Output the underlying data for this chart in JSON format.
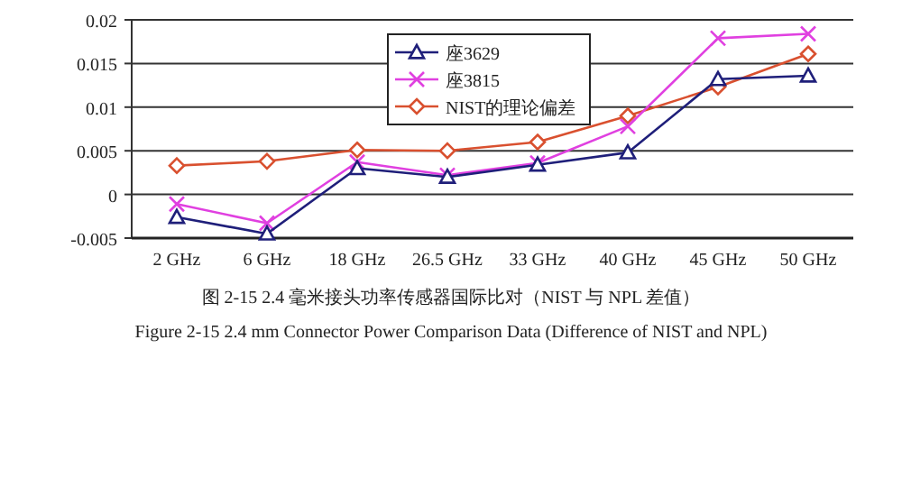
{
  "chart_data": {
    "type": "line",
    "categories": [
      "2 GHz",
      "6 GHz",
      "18 GHz",
      "26.5 GHz",
      "33 GHz",
      "40 GHz",
      "45 GHz",
      "50 GHz"
    ],
    "series": [
      {
        "name": "座3629",
        "color": "#1f1f7a",
        "marker": "triangle",
        "values": [
          -0.0026,
          -0.0045,
          0.003,
          0.002,
          0.0034,
          0.0048,
          0.0132,
          0.0136
        ]
      },
      {
        "name": "座3815",
        "color": "#e040e0",
        "marker": "cross",
        "values": [
          -0.0011,
          -0.0033,
          0.0037,
          0.0022,
          0.0036,
          0.0078,
          0.0179,
          0.0184
        ]
      },
      {
        "name": "NIST的理论偏差",
        "color": "#d9502f",
        "marker": "diamond",
        "values": [
          0.0033,
          0.0038,
          0.0051,
          0.005,
          0.006,
          0.009,
          0.0123,
          0.0161
        ]
      }
    ],
    "ylim": [
      -0.005,
      0.02
    ],
    "yticks": [
      -0.005,
      0,
      0.005,
      0.01,
      0.015,
      0.02
    ],
    "grid": "y",
    "legend": "top",
    "annotations": [
      "图  2-15 2.4 毫米接头功率传感器国际比对（NIST 与 NPL 差值）",
      "Figure 2-15 2.4 mm Connector Power Comparison Data (Difference of NIST and NPL)"
    ]
  }
}
